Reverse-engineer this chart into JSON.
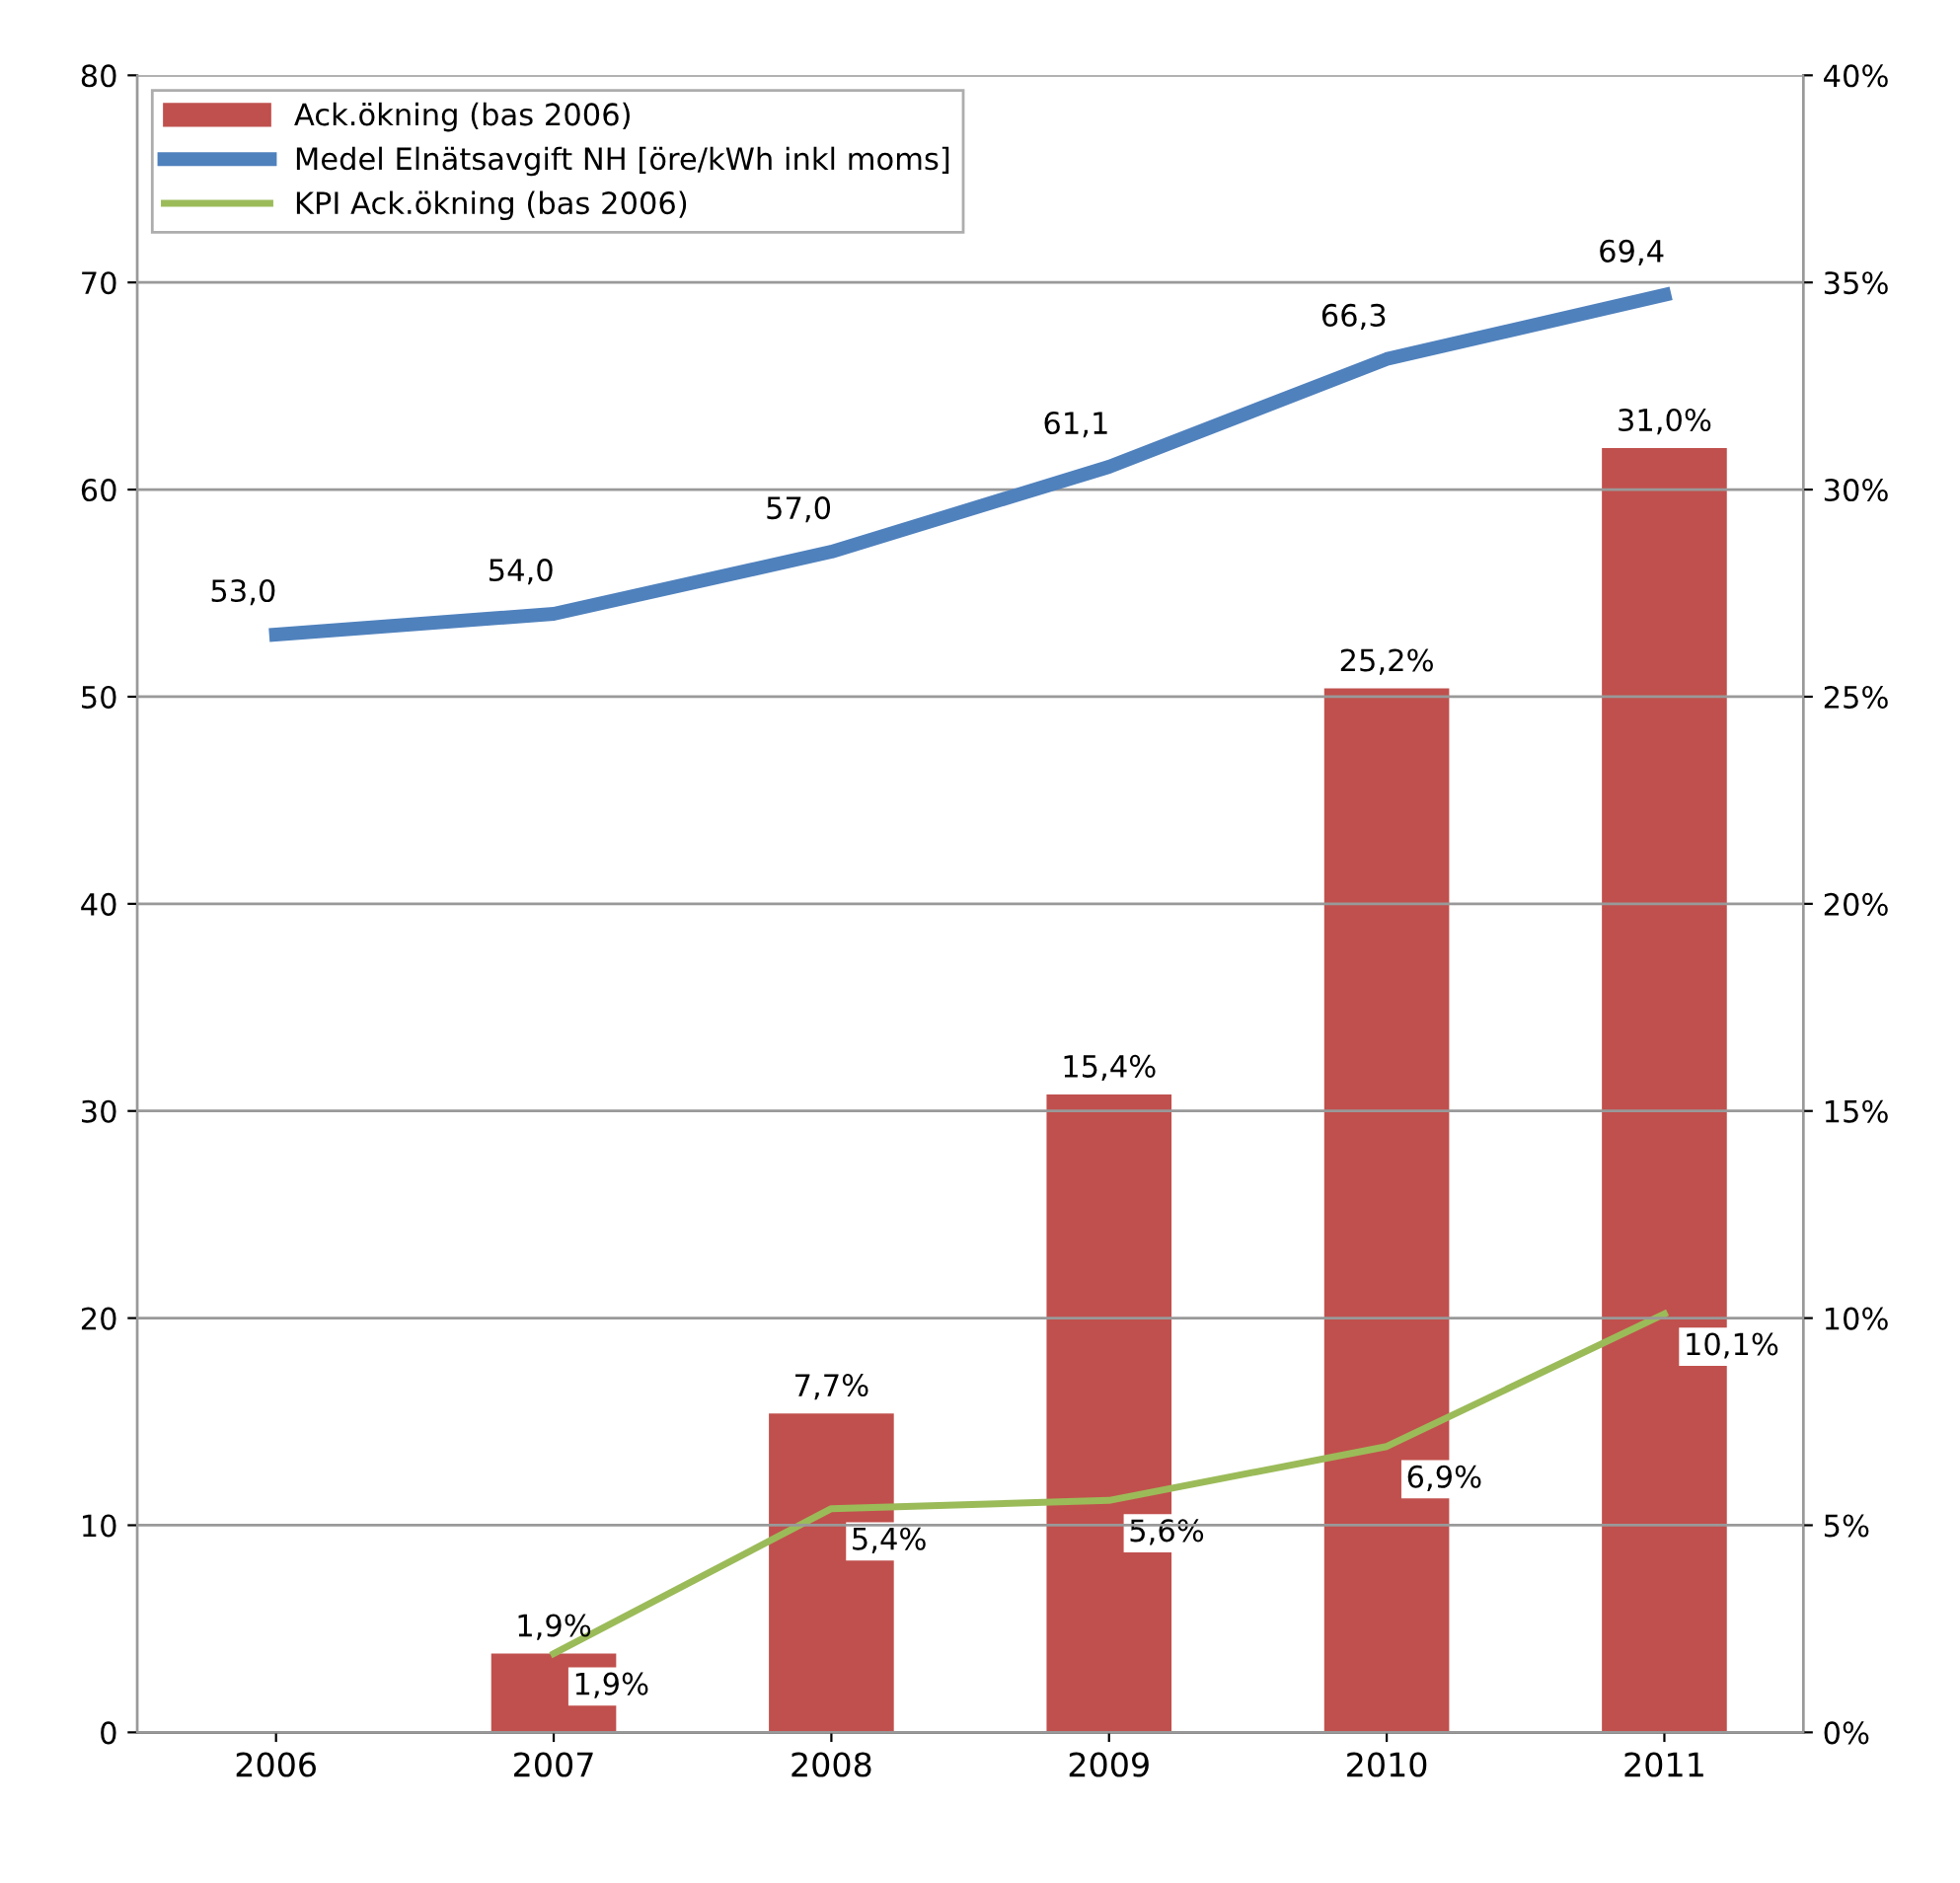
{
  "chart_data": {
    "type": "bar",
    "categories": [
      "2006",
      "2007",
      "2008",
      "2009",
      "2010",
      "2011"
    ],
    "series": [
      {
        "name": "Ack.ökning (bas 2006)",
        "axis": "y2",
        "color": "#c0504d",
        "values": [
          null,
          1.9,
          7.7,
          15.4,
          25.2,
          31.0
        ],
        "value_labels": [
          null,
          "1,9%",
          "7,7%",
          "15,4%",
          "25,2%",
          "31,0%"
        ]
      },
      {
        "name": "Medel Elnätsavgift NH [öre/kWh inkl moms]",
        "type": "line",
        "color": "#4f81bd",
        "values": [
          53.0,
          54.0,
          57.0,
          61.1,
          66.3,
          69.4
        ],
        "value_labels": [
          "53,0",
          "54,0",
          "57,0",
          "61,1",
          "66,3",
          "69,4"
        ]
      },
      {
        "name": "KPI Ack.ökning (bas 2006)",
        "type": "line",
        "axis": "y2",
        "color": "#9bbb59",
        "values": [
          null,
          1.9,
          5.4,
          5.6,
          6.9,
          10.1
        ],
        "value_labels": [
          null,
          "1,9%",
          "5,4%",
          "5,6%",
          "6,9%",
          "10,1%"
        ]
      }
    ],
    "ylim": [
      0,
      80
    ],
    "yticks": [
      0,
      10,
      20,
      30,
      40,
      50,
      60,
      70,
      80
    ],
    "y2lim": [
      0,
      40
    ],
    "y2ticks": [
      {
        "value": 0,
        "label": "0%"
      },
      {
        "value": 5,
        "label": "5%"
      },
      {
        "value": 10,
        "label": "10%"
      },
      {
        "value": 15,
        "label": "15%"
      },
      {
        "value": 20,
        "label": "20%"
      },
      {
        "value": 25,
        "label": "25%"
      },
      {
        "value": 30,
        "label": "30%"
      },
      {
        "value": 35,
        "label": "35%"
      },
      {
        "value": 40,
        "label": "40%"
      }
    ],
    "grid": "y",
    "legend": "top left",
    "marker": "none",
    "line_style": "solid"
  }
}
